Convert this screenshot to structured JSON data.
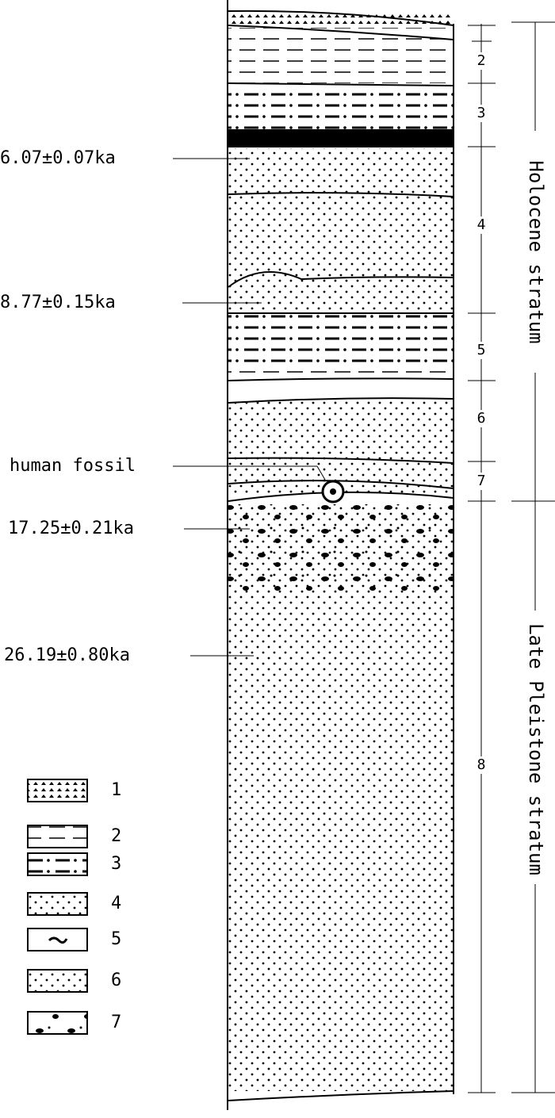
{
  "dates": [
    "6.07±0.07ka",
    "8.77±0.15ka",
    "17.25±0.21ka",
    "26.19±0.80ka"
  ],
  "fossil": "human fossil",
  "layers": [
    "2",
    "3",
    "4",
    "5",
    "6",
    "7",
    "8"
  ],
  "strata": [
    "Holocene stratum",
    "Late Pleistone stratum"
  ],
  "legend": [
    "1",
    "2",
    "3",
    "4",
    "5",
    "6",
    "7"
  ]
}
